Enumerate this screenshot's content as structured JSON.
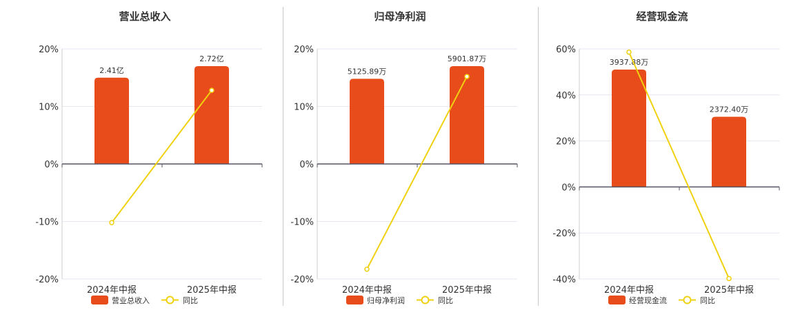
{
  "colors": {
    "bar": "#e84c1a",
    "line": "#f0d10f",
    "grid": "#e6e6f0",
    "axis": "#555566"
  },
  "legend_line_label": "同比",
  "chart_data": [
    {
      "type": "bar",
      "title": "营业总收入",
      "categories": [
        "2024年中报",
        "2025年中报"
      ],
      "series": [
        {
          "name": "营业总收入",
          "type": "bar",
          "values": [
            2.41,
            2.72
          ],
          "value_labels": [
            "2.41亿",
            "2.72亿"
          ]
        },
        {
          "name": "同比",
          "type": "line",
          "values": [
            -10.2,
            12.8
          ]
        }
      ],
      "ylim": [
        -20,
        20
      ],
      "yticks": [
        "20%",
        "10%",
        "0%",
        "-10%",
        "-20%"
      ],
      "bar_pct_heights": [
        15.0,
        17.0
      ],
      "grid": true,
      "legend_position": "bottom"
    },
    {
      "type": "bar",
      "title": "归母净利润",
      "categories": [
        "2024年中报",
        "2025年中报"
      ],
      "series": [
        {
          "name": "归母净利润",
          "type": "bar",
          "values": [
            5125.89,
            5901.87
          ],
          "value_labels": [
            "5125.89万",
            "5901.87万"
          ]
        },
        {
          "name": "同比",
          "type": "line",
          "values": [
            -18.3,
            15.2
          ]
        }
      ],
      "ylim": [
        -20,
        20
      ],
      "yticks": [
        "20%",
        "10%",
        "0%",
        "-10%",
        "-20%"
      ],
      "bar_pct_heights": [
        14.8,
        17.0
      ],
      "grid": true,
      "legend_position": "bottom"
    },
    {
      "type": "bar",
      "title": "经营现金流",
      "categories": [
        "2024年中报",
        "2025年中报"
      ],
      "series": [
        {
          "name": "经营现金流",
          "type": "bar",
          "values": [
            3937.88,
            2372.4
          ],
          "value_labels": [
            "3937.88万",
            "2372.40万"
          ]
        },
        {
          "name": "同比",
          "type": "line",
          "values": [
            58.6,
            -39.8
          ]
        }
      ],
      "ylim": [
        -40,
        60
      ],
      "yticks": [
        "60%",
        "40%",
        "20%",
        "0%",
        "-20%",
        "-40%"
      ],
      "bar_pct_heights": [
        51.0,
        30.5
      ],
      "grid": true,
      "legend_position": "bottom"
    }
  ]
}
